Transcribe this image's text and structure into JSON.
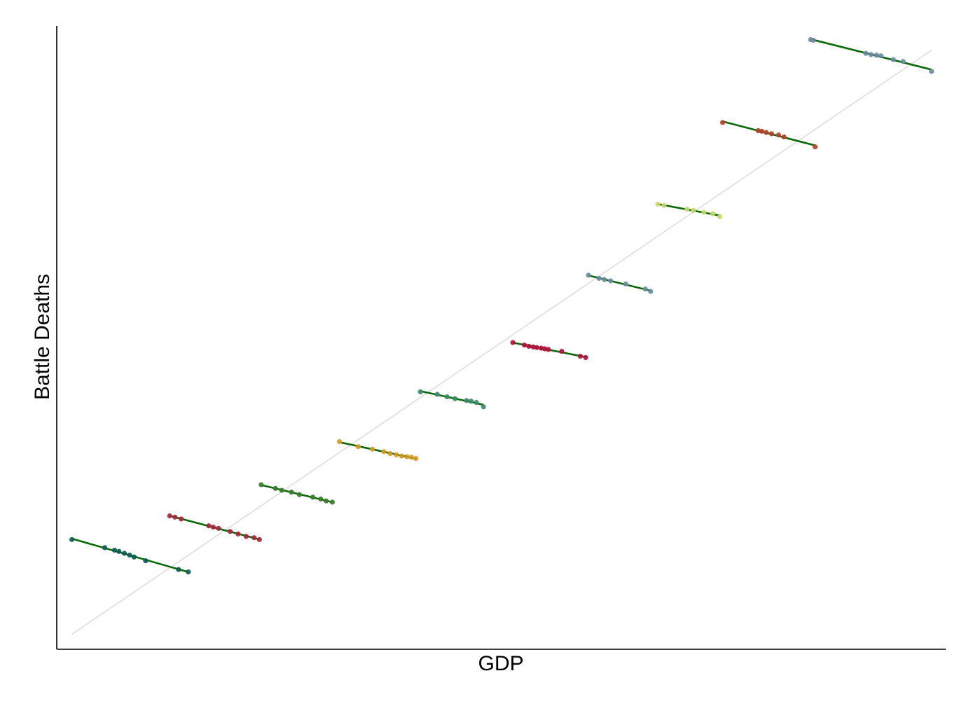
{
  "chart_data": {
    "type": "scatter",
    "xlabel": "GDP",
    "ylabel": "Battle Deaths",
    "xlim": [
      0,
      100
    ],
    "ylim": [
      0,
      100
    ],
    "grid": false,
    "axis_tick_labels": false,
    "overall_trend": {
      "x": [
        1.7,
        98.4
      ],
      "y": [
        2.4,
        96.1
      ],
      "color": "#e3e3e3"
    },
    "group_fit_color": "#0a6a0a",
    "groups": [
      {
        "color": "#0d5a4f",
        "x": [
          1.7,
          5.4,
          6.5,
          7.0,
          7.6,
          8.2,
          8.7,
          10.0,
          13.7,
          14.8
        ],
        "y": [
          17.6,
          16.3,
          15.9,
          15.7,
          15.4,
          15.1,
          14.8,
          14.2,
          12.8,
          12.4
        ]
      },
      {
        "color": "#a6253a",
        "x": [
          12.7,
          13.3,
          14.0,
          17.1,
          17.6,
          18.2,
          19.5,
          20.4,
          21.3,
          22.2,
          22.8
        ],
        "y": [
          21.4,
          21.2,
          20.9,
          19.8,
          19.6,
          19.4,
          18.9,
          18.5,
          18.1,
          17.9,
          17.6
        ]
      },
      {
        "color": "#3a7a2a",
        "x": [
          23.0,
          24.6,
          25.3,
          26.4,
          27.3,
          28.8,
          29.7,
          30.3,
          31.0
        ],
        "y": [
          26.4,
          25.8,
          25.5,
          25.2,
          24.8,
          24.4,
          24.1,
          23.8,
          23.6
        ]
      },
      {
        "color": "#d99a20",
        "x": [
          31.8,
          33.9,
          35.5,
          36.8,
          37.5,
          38.2,
          38.8,
          39.4,
          39.9,
          40.4
        ],
        "y": [
          33.3,
          32.5,
          32.1,
          31.7,
          31.4,
          31.2,
          31.0,
          30.9,
          30.8,
          30.6
        ]
      },
      {
        "color": "#3a8a6a",
        "x": [
          40.9,
          42.8,
          43.9,
          44.8,
          46.1,
          46.6,
          47.2,
          48.0
        ],
        "y": [
          41.3,
          40.9,
          40.5,
          40.2,
          39.9,
          39.8,
          39.6,
          38.9
        ]
      },
      {
        "color": "#b0103a",
        "x": [
          51.3,
          52.6,
          53.1,
          53.6,
          54.0,
          54.5,
          54.9,
          55.3,
          56.8,
          58.9,
          59.5
        ],
        "y": [
          49.2,
          48.8,
          48.6,
          48.5,
          48.4,
          48.3,
          48.2,
          48.1,
          47.8,
          47.0,
          46.8
        ]
      },
      {
        "color": "#6a8aa0",
        "x": [
          59.8,
          61.0,
          61.6,
          62.3,
          64.0,
          66.2,
          66.8
        ],
        "y": [
          60.0,
          59.5,
          59.3,
          59.1,
          58.6,
          57.8,
          57.4
        ]
      },
      {
        "color": "#c8d86a",
        "x": [
          67.6,
          68.3,
          70.9,
          71.6,
          72.8,
          73.8,
          74.6
        ],
        "y": [
          71.4,
          71.2,
          70.6,
          70.4,
          70.1,
          69.9,
          69.4
        ]
      },
      {
        "color": "#b04028",
        "x": [
          74.9,
          78.9,
          79.3,
          79.8,
          80.4,
          81.2,
          81.8,
          85.3
        ],
        "y": [
          84.5,
          83.2,
          83.1,
          82.9,
          82.7,
          82.5,
          82.2,
          80.6
        ]
      },
      {
        "color": "#6a8aa0",
        "x": [
          84.8,
          85.1,
          91.0,
          91.6,
          92.2,
          92.7,
          94.1,
          95.2,
          98.4
        ],
        "y": [
          97.8,
          97.7,
          95.6,
          95.4,
          95.3,
          95.2,
          94.6,
          94.3,
          92.7
        ]
      }
    ]
  }
}
